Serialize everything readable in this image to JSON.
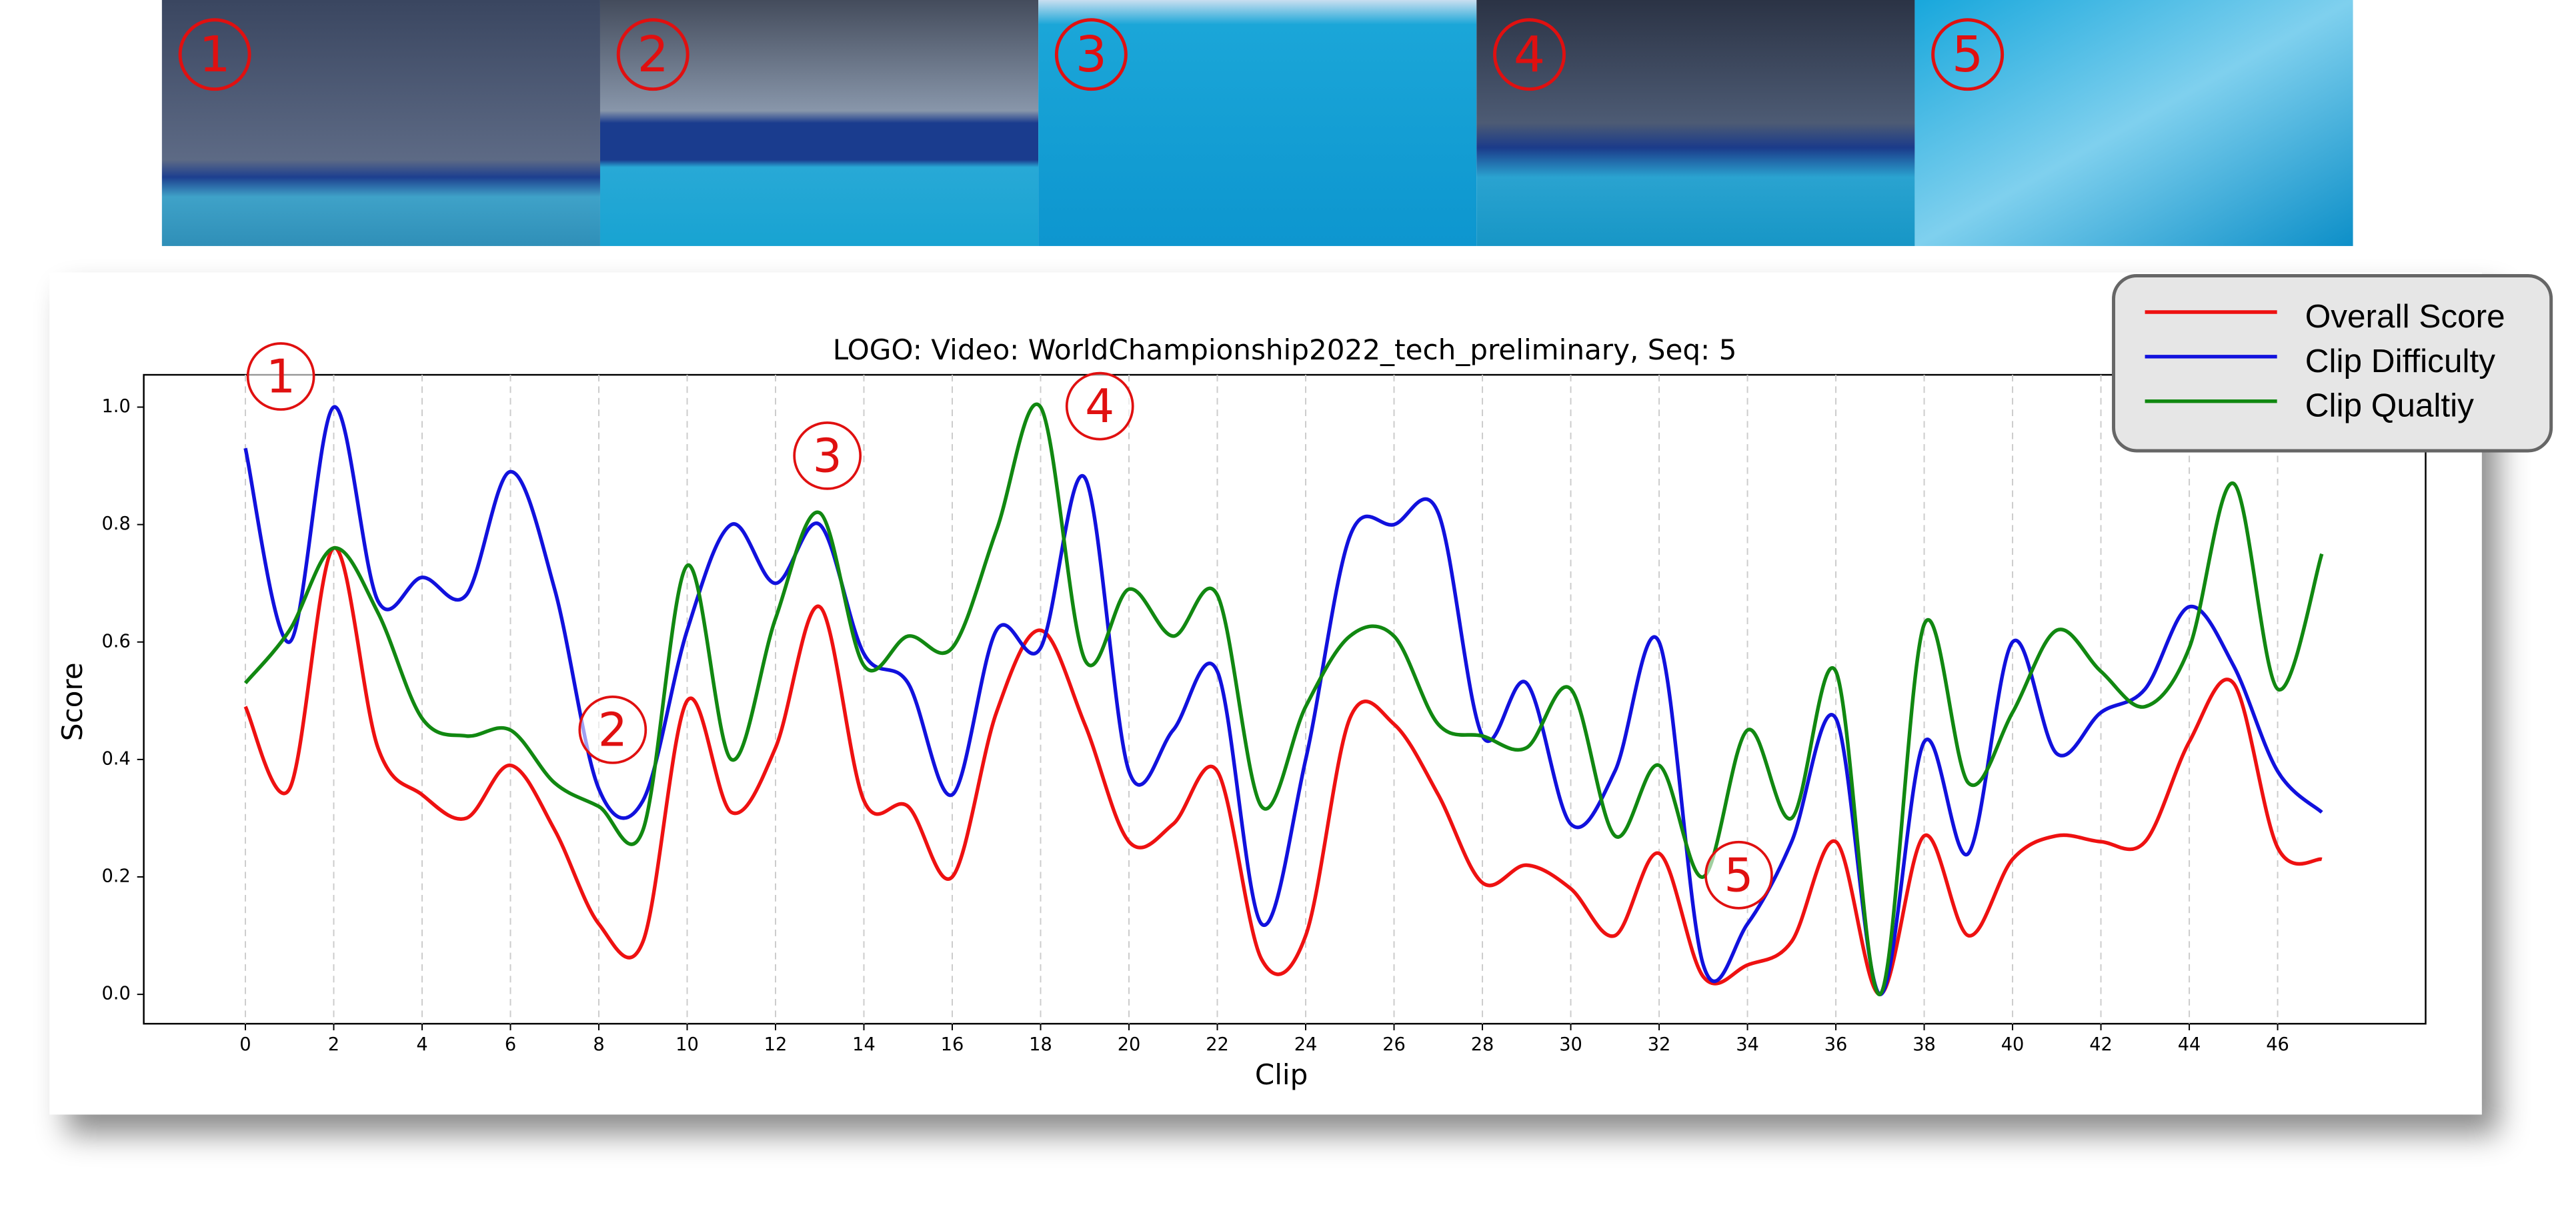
{
  "thumbnails": [
    "1",
    "2",
    "3",
    "4",
    "5"
  ],
  "chart_data": {
    "type": "line",
    "title": "LOGO: Video: WorldChampionship2022_tech_preliminary, Seq: 5",
    "x_label": "Clip",
    "y_label": "Score",
    "annotations": [
      "1",
      "2",
      "3",
      "4",
      "5"
    ],
    "x": [
      0,
      1,
      2,
      3,
      4,
      5,
      6,
      7,
      8,
      9,
      10,
      11,
      12,
      13,
      14,
      15,
      16,
      17,
      18,
      19,
      20,
      21,
      22,
      23,
      24,
      25,
      26,
      27,
      28,
      29,
      30,
      31,
      32,
      33,
      34,
      35,
      36,
      37,
      38,
      39,
      40,
      41,
      42,
      43,
      44,
      45,
      46,
      47
    ],
    "series": [
      {
        "name": "Overall Score",
        "color": "#ee1111",
        "values": [
          0.49,
          0.35,
          0.76,
          0.42,
          0.34,
          0.3,
          0.39,
          0.28,
          0.12,
          0.09,
          0.5,
          0.31,
          0.42,
          0.66,
          0.33,
          0.32,
          0.2,
          0.48,
          0.62,
          0.46,
          0.26,
          0.29,
          0.38,
          0.06,
          0.1,
          0.47,
          0.46,
          0.34,
          0.19,
          0.22,
          0.18,
          0.1,
          0.24,
          0.03,
          0.05,
          0.09,
          0.26,
          0.0,
          0.27,
          0.1,
          0.23,
          0.27,
          0.26,
          0.26,
          0.43,
          0.53,
          0.25,
          0.23
        ]
      },
      {
        "name": "Clip Difficulty",
        "color": "#1111dd",
        "values": [
          0.93,
          0.6,
          1.0,
          0.67,
          0.71,
          0.68,
          0.89,
          0.69,
          0.35,
          0.33,
          0.62,
          0.8,
          0.7,
          0.8,
          0.58,
          0.53,
          0.34,
          0.62,
          0.59,
          0.88,
          0.38,
          0.45,
          0.55,
          0.12,
          0.4,
          0.78,
          0.8,
          0.82,
          0.44,
          0.53,
          0.29,
          0.38,
          0.6,
          0.05,
          0.12,
          0.26,
          0.47,
          0.0,
          0.43,
          0.24,
          0.6,
          0.41,
          0.48,
          0.52,
          0.66,
          0.56,
          0.38,
          0.31
        ]
      },
      {
        "name": "Clip Qualtiy",
        "color": "#118811",
        "values": [
          0.53,
          0.62,
          0.76,
          0.65,
          0.47,
          0.44,
          0.45,
          0.36,
          0.32,
          0.28,
          0.73,
          0.4,
          0.64,
          0.82,
          0.56,
          0.61,
          0.59,
          0.79,
          1.0,
          0.57,
          0.69,
          0.61,
          0.68,
          0.32,
          0.49,
          0.61,
          0.61,
          0.46,
          0.44,
          0.42,
          0.52,
          0.27,
          0.39,
          0.2,
          0.45,
          0.3,
          0.55,
          0.0,
          0.63,
          0.36,
          0.48,
          0.62,
          0.55,
          0.49,
          0.59,
          0.87,
          0.52,
          0.75
        ]
      }
    ],
    "xlim": [
      -2.3,
      49.35
    ],
    "ylim": [
      -0.05,
      1.055
    ],
    "xticks": [
      0,
      2,
      4,
      6,
      8,
      10,
      12,
      14,
      16,
      18,
      20,
      22,
      24,
      26,
      28,
      30,
      32,
      34,
      36,
      38,
      40,
      42,
      44,
      46
    ],
    "yticks": [
      {
        "value": 0,
        "label": "0.0"
      },
      {
        "value": 0.2,
        "label": "0.2"
      },
      {
        "value": 0.4,
        "label": "0.4"
      },
      {
        "value": 0.6,
        "label": "0.6"
      },
      {
        "value": 0.8,
        "label": "0.8"
      },
      {
        "value": 1,
        "label": "1.0"
      }
    ],
    "grid": true,
    "legend": "upper right"
  }
}
